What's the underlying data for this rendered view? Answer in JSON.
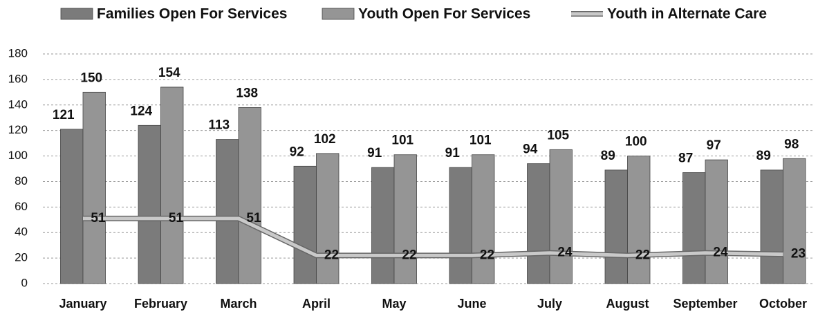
{
  "chart_data": {
    "type": "bar",
    "categories": [
      "January",
      "February",
      "March",
      "April",
      "May",
      "June",
      "July",
      "August",
      "September",
      "October"
    ],
    "series": [
      {
        "name": "Families Open For Services",
        "color": "#7b7b7b",
        "values": [
          121,
          124,
          113,
          92,
          91,
          91,
          94,
          89,
          87,
          89
        ]
      },
      {
        "name": "Youth Open For Services",
        "color": "#959595",
        "values": [
          150,
          154,
          138,
          102,
          101,
          101,
          105,
          100,
          97,
          98
        ]
      },
      {
        "name": "Youth in Alternate Care",
        "color": "#c9c9c9",
        "type": "line",
        "values": [
          51,
          51,
          51,
          22,
          22,
          22,
          24,
          22,
          24,
          23
        ]
      }
    ],
    "ylim": [
      0,
      180
    ],
    "yticks": [
      0,
      20,
      40,
      60,
      80,
      100,
      120,
      140,
      160,
      180
    ],
    "grid": true,
    "legend": "top"
  }
}
